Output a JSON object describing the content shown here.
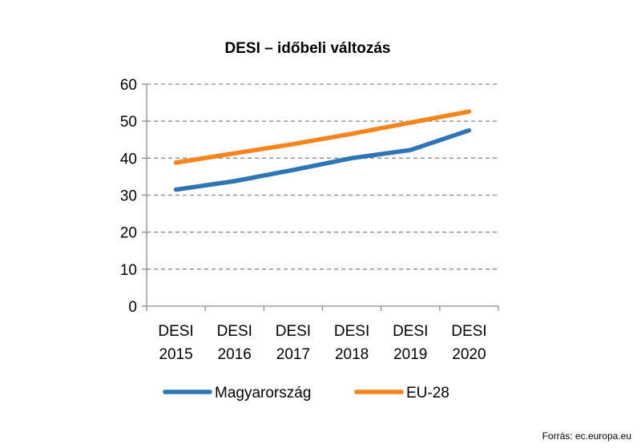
{
  "chart_data": {
    "type": "line",
    "title": "DESI – időbeli változás",
    "categories": [
      [
        "DESI",
        "2015"
      ],
      [
        "DESI",
        "2016"
      ],
      [
        "DESI",
        "2017"
      ],
      [
        "DESI",
        "2018"
      ],
      [
        "DESI",
        "2019"
      ],
      [
        "DESI",
        "2020"
      ]
    ],
    "series": [
      {
        "name": "Magyarország",
        "color": "#2E75B6",
        "values": [
          31.5,
          33.8,
          36.8,
          40.0,
          42.2,
          47.5
        ]
      },
      {
        "name": "EU-28",
        "color": "#F7841C",
        "values": [
          38.8,
          41.3,
          43.8,
          46.6,
          49.6,
          52.6
        ]
      }
    ],
    "ylim": [
      0,
      60
    ],
    "yticks": [
      0,
      10,
      20,
      30,
      40,
      50,
      60
    ],
    "grid": true,
    "grid_style": "dashed",
    "legend_position": "bottom"
  },
  "source_text": "Forrás: ec.europa.eu"
}
